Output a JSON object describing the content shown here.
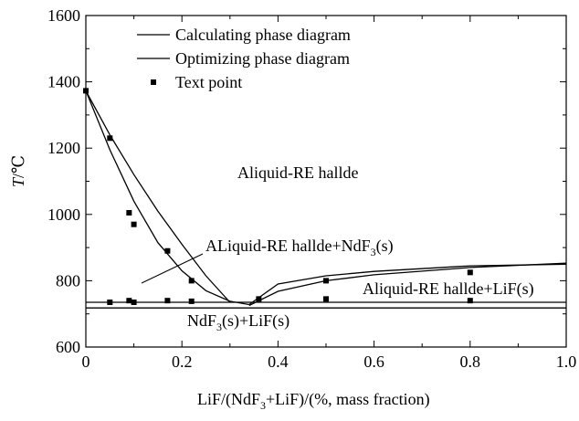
{
  "chart_data": {
    "type": "line",
    "xlabel": "LiF/(NdF3+LiF)/(%, mass fraction)",
    "ylabel": "T/℃",
    "xlim": [
      0,
      1.0
    ],
    "ylim": [
      600,
      1600
    ],
    "x_ticks": [
      "0",
      "0.2",
      "0.4",
      "0.6",
      "0.8",
      "1.0"
    ],
    "y_ticks": [
      "600",
      "800",
      "1000",
      "1200",
      "1400",
      "1600"
    ],
    "grid": false,
    "legend_position": "top-left",
    "legend": [
      {
        "label": "Calculating phase diagram",
        "marker": "line"
      },
      {
        "label": "Optimizing phase diagram",
        "marker": "line"
      },
      {
        "label": "Text point",
        "marker": "square"
      }
    ],
    "series": [
      {
        "name": "Calculating phase diagram",
        "liquidus_left": [
          [
            0,
            1373
          ],
          [
            0.05,
            1240
          ],
          [
            0.1,
            1120
          ],
          [
            0.15,
            1010
          ],
          [
            0.2,
            910
          ],
          [
            0.25,
            815
          ],
          [
            0.3,
            735
          ]
        ],
        "liquidus_right": [
          [
            0.34,
            725
          ],
          [
            0.4,
            768
          ],
          [
            0.5,
            800
          ],
          [
            0.6,
            818
          ],
          [
            0.8,
            840
          ],
          [
            1.0,
            853
          ]
        ]
      },
      {
        "name": "Optimizing phase diagram",
        "liquidus_left": [
          [
            0,
            1373
          ],
          [
            0.05,
            1195
          ],
          [
            0.1,
            1040
          ],
          [
            0.15,
            915
          ],
          [
            0.2,
            830
          ],
          [
            0.25,
            770
          ],
          [
            0.3,
            738
          ],
          [
            0.34,
            728
          ]
        ],
        "liquidus_right": [
          [
            0.34,
            728
          ],
          [
            0.4,
            790
          ],
          [
            0.5,
            815
          ],
          [
            0.6,
            828
          ],
          [
            0.8,
            845
          ],
          [
            1.0,
            850
          ]
        ]
      },
      {
        "name": "Text point",
        "points": [
          [
            0,
            1373
          ],
          [
            0.05,
            1230
          ],
          [
            0.09,
            1005
          ],
          [
            0.1,
            970
          ],
          [
            0.17,
            890
          ],
          [
            0.22,
            800
          ],
          [
            0.5,
            800
          ],
          [
            0.8,
            825
          ],
          [
            0.05,
            735
          ],
          [
            0.09,
            740
          ],
          [
            0.1,
            735
          ],
          [
            0.17,
            740
          ],
          [
            0.22,
            738
          ],
          [
            0.36,
            745
          ],
          [
            0.5,
            745
          ],
          [
            0.8,
            740
          ]
        ]
      }
    ],
    "eutectic_lines": [
      735,
      718
    ],
    "annotations": {
      "liquid": "Aliquid-RE hallde",
      "liquid_ndf3_prefix": "ALiquid-RE hallde+NdF",
      "liquid_ndf3_sub": "3",
      "liquid_ndf3_suffix": "(s)",
      "liquid_lif": "Aliquid-RE hallde+LiF(s)",
      "solid_prefix": "NdF",
      "solid_sub": "3",
      "solid_suffix": "(s)+LiF(s)"
    },
    "xlabel_parts": {
      "prefix": "LiF/(NdF",
      "sub": "3",
      "suffix": "+LiF)/(%, mass fraction)"
    },
    "ylabel_parts": {
      "t": "T",
      "unit": "/℃"
    }
  }
}
